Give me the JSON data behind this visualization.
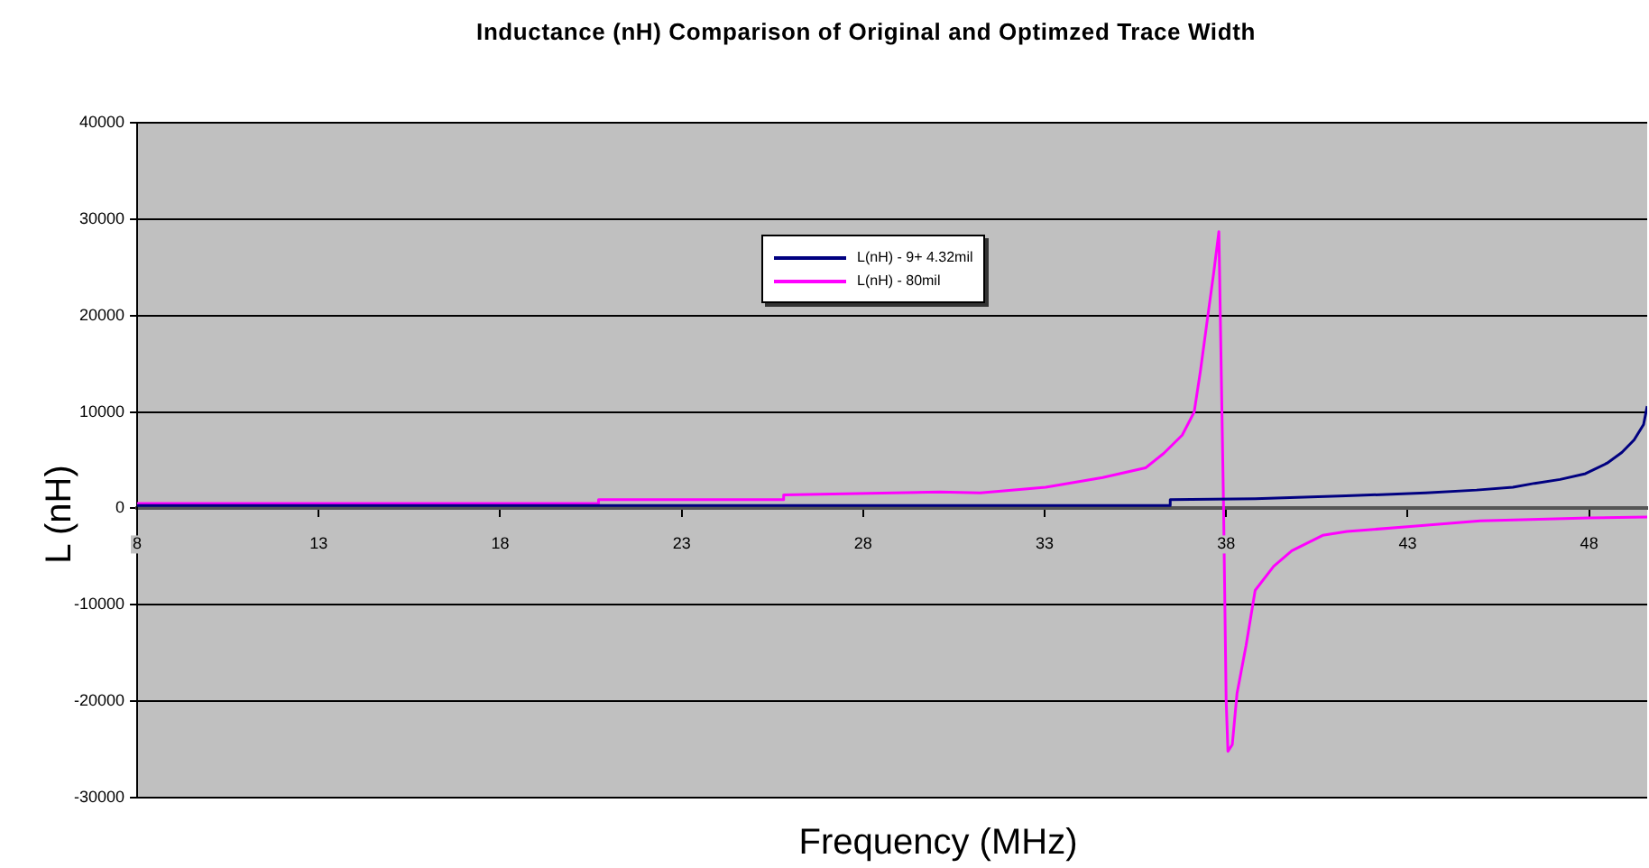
{
  "chart_data": {
    "type": "line",
    "title": "Inductance (nH) Comparison of Original and Optimzed Trace Width",
    "xlabel": "Frequency (MHz)",
    "ylabel": "L (nH)",
    "xlim": [
      8,
      49.6
    ],
    "xticks": [
      8,
      13,
      18,
      23,
      28,
      33,
      38,
      43,
      48
    ],
    "ylim": [
      -30000,
      40000
    ],
    "yticks": [
      -30000,
      -20000,
      -10000,
      0,
      10000,
      20000,
      30000,
      40000
    ],
    "grid": "y",
    "legend": "top",
    "marker": "none",
    "line_style": "solid",
    "series": [
      {
        "name": "L(nH) - 9+ 4.32mil",
        "color": "#000080",
        "x": [
          8,
          19.4,
          36.45,
          36.46,
          38.8,
          41.3,
          43.5,
          44.9,
          45.9,
          46.5,
          47.2,
          47.9,
          48.5,
          48.9,
          49.24,
          49.5,
          49.6
        ],
        "values": [
          300,
          300,
          300,
          900,
          1000,
          1300,
          1600,
          1900,
          2200,
          2600,
          3000,
          3600,
          4700,
          5800,
          7100,
          8700,
          10600
        ]
      },
      {
        "name": "L(nH) - 80mil",
        "color": "#ff00ff",
        "x": [
          8,
          20.7,
          20.71,
          25.8,
          25.81,
          30.1,
          31.23,
          33.03,
          34.6,
          35.78,
          36.28,
          36.79,
          37.12,
          37.29,
          37.49,
          37.66,
          37.8,
          37.93,
          38.0,
          38.05,
          38.17,
          38.3,
          38.55,
          38.8,
          39.31,
          39.81,
          40.66,
          41.33,
          43,
          45,
          48,
          49.6
        ],
        "values": [
          500,
          500,
          900,
          900,
          1400,
          1700,
          1600,
          2200,
          3200,
          4200,
          5700,
          7600,
          10000,
          14200,
          19800,
          24500,
          28700,
          0,
          -19800,
          -25200,
          -24500,
          -19200,
          -14200,
          -8500,
          -6000,
          -4400,
          -2800,
          -2400,
          -1900,
          -1300,
          -1000,
          -900
        ]
      }
    ]
  }
}
